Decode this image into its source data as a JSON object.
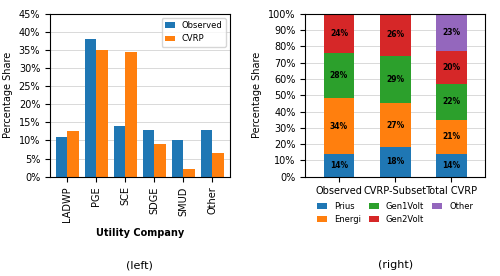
{
  "chart_data": [
    {
      "type": "bar",
      "categories": [
        "LADWP",
        "PGE",
        "SCE",
        "SDGE",
        "SMUD",
        "Other"
      ],
      "series": [
        {
          "name": "Observed",
          "values": [
            11,
            38,
            14,
            13,
            10,
            13
          ]
        },
        {
          "name": "CVRP",
          "values": [
            12.5,
            35,
            34.5,
            9,
            2,
            6.5
          ]
        }
      ],
      "x_label": "Utility Company",
      "y_label": "Percentage Share",
      "ylim": [
        0,
        45
      ],
      "yticks": [
        {
          "value": 0,
          "label": "0%"
        },
        {
          "value": 5,
          "label": "5%"
        },
        {
          "value": 10,
          "label": "10%"
        },
        {
          "value": 15,
          "label": "15%"
        },
        {
          "value": 20,
          "label": "20%"
        },
        {
          "value": 25,
          "label": "25%"
        },
        {
          "value": 30,
          "label": "30%"
        },
        {
          "value": 35,
          "label": "35%"
        },
        {
          "value": 40,
          "label": "40%"
        },
        {
          "value": 45,
          "label": "45%"
        }
      ],
      "grid": true,
      "legend": "upper right",
      "annotation": "(left)"
    },
    {
      "type": "bar",
      "stacked": true,
      "data_labels": true,
      "categories": [
        "Observed",
        "CVRP-Subset",
        "Total CVRP"
      ],
      "series": [
        {
          "name": "Prius",
          "values": [
            14,
            18,
            14
          ],
          "value_labels": [
            "14%",
            "18%",
            "14%"
          ]
        },
        {
          "name": "Energi",
          "values": [
            34,
            27,
            21
          ],
          "value_labels": [
            "34%",
            "27%",
            "21%"
          ]
        },
        {
          "name": "Gen1Volt",
          "values": [
            28,
            29,
            22
          ],
          "value_labels": [
            "28%",
            "29%",
            "22%"
          ]
        },
        {
          "name": "Gen2Volt",
          "values": [
            24,
            26,
            20
          ],
          "value_labels": [
            "24%",
            "26%",
            "20%"
          ]
        },
        {
          "name": "Other",
          "values": [
            0,
            0,
            23
          ],
          "value_labels": [
            null,
            null,
            "23%"
          ]
        }
      ],
      "y_label": "Percentage Share",
      "ylim": [
        0,
        100
      ],
      "yticks": [
        {
          "value": 0,
          "label": "0%"
        },
        {
          "value": 10,
          "label": "10%"
        },
        {
          "value": 20,
          "label": "20%"
        },
        {
          "value": 30,
          "label": "30%"
        },
        {
          "value": 40,
          "label": "40%"
        },
        {
          "value": 50,
          "label": "50%"
        },
        {
          "value": 60,
          "label": "60%"
        },
        {
          "value": 70,
          "label": "70%"
        },
        {
          "value": 80,
          "label": "80%"
        },
        {
          "value": 90,
          "label": "90%"
        },
        {
          "value": 100,
          "label": "100%"
        }
      ],
      "grid": true,
      "legend": "upper center",
      "annotation": "(right)"
    }
  ]
}
